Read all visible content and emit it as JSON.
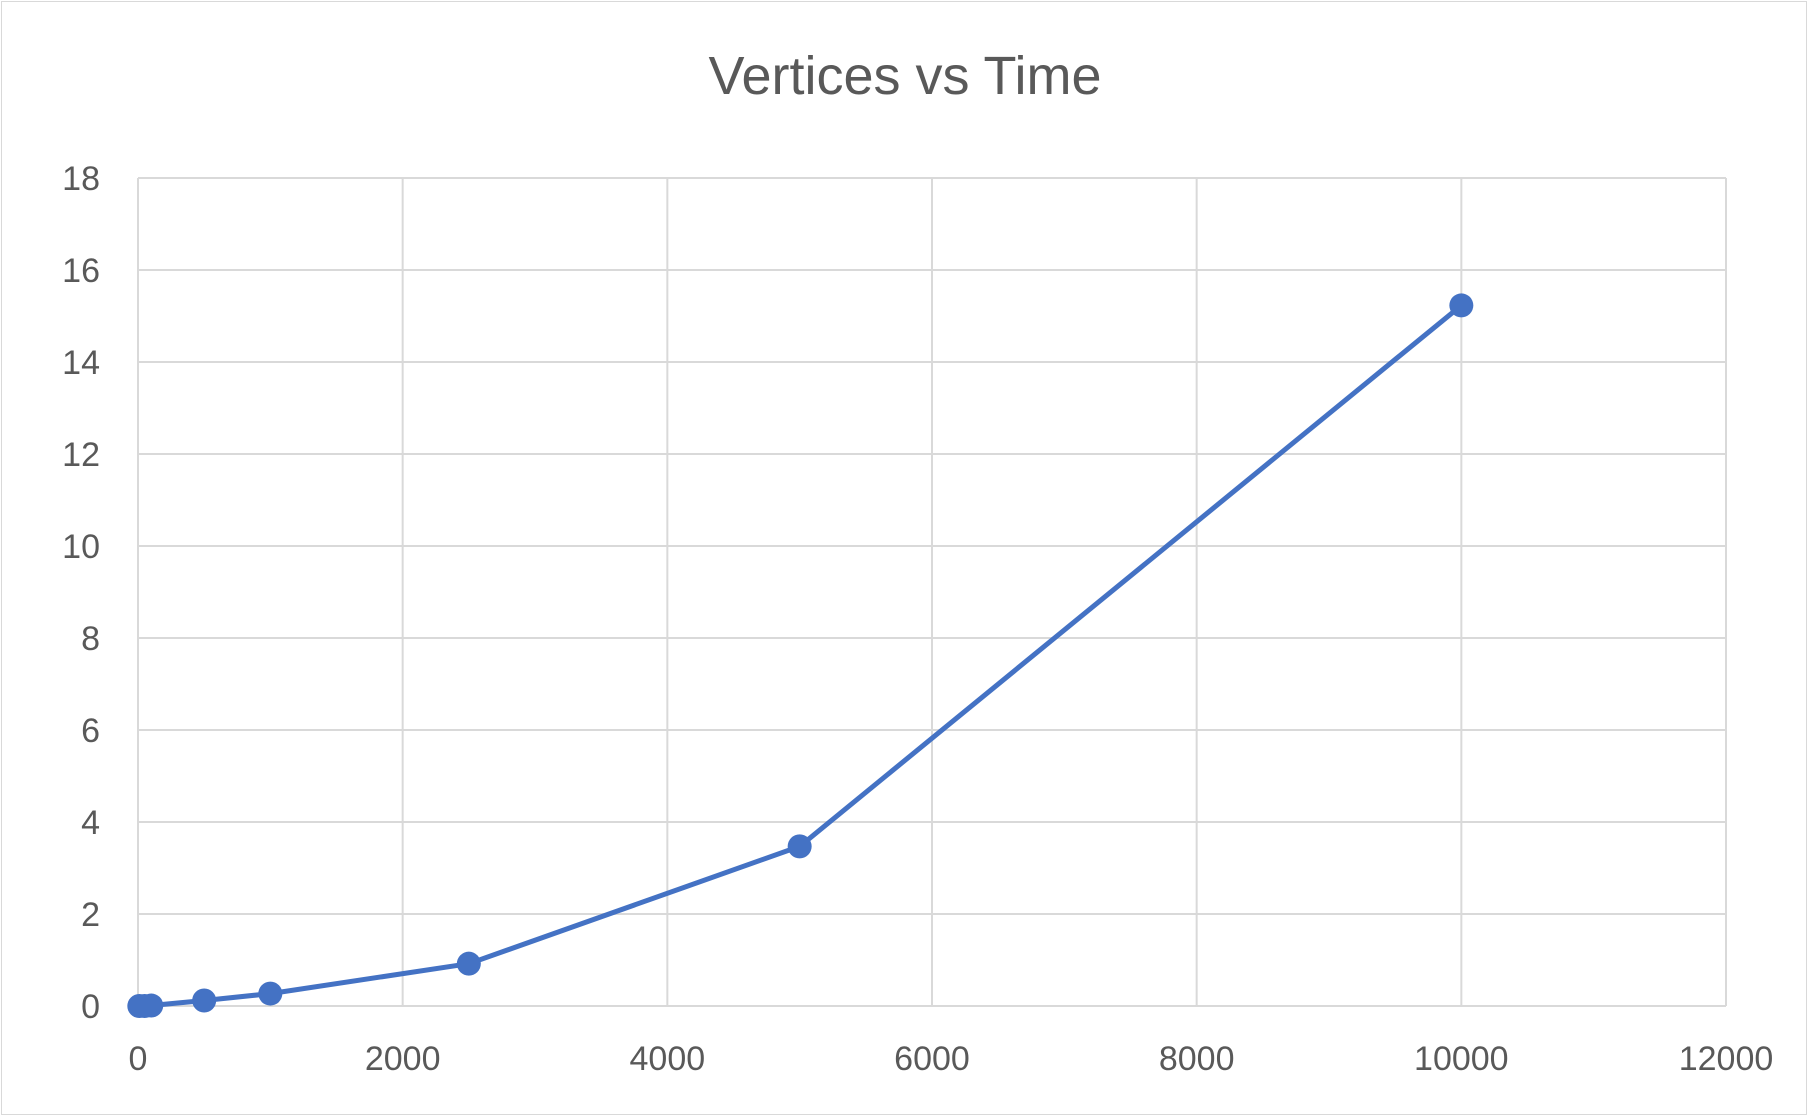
{
  "chart_data": {
    "type": "line",
    "title": "Vertices vs Time",
    "xlabel": "",
    "ylabel": "",
    "xlim": [
      0,
      12000
    ],
    "ylim": [
      0,
      18
    ],
    "x_ticks": [
      0,
      2000,
      4000,
      6000,
      8000,
      10000,
      12000
    ],
    "y_ticks": [
      0,
      2,
      4,
      6,
      8,
      10,
      12,
      14,
      16,
      18
    ],
    "grid": true,
    "legend": "none",
    "series": [
      {
        "color": "#4472c4",
        "points": [
          {
            "x": 10,
            "y": 0.0
          },
          {
            "x": 50,
            "y": 0.0
          },
          {
            "x": 100,
            "y": 0.01
          },
          {
            "x": 500,
            "y": 0.12
          },
          {
            "x": 1000,
            "y": 0.27
          },
          {
            "x": 2500,
            "y": 0.92
          },
          {
            "x": 5000,
            "y": 3.47
          },
          {
            "x": 10000,
            "y": 15.23
          }
        ]
      }
    ]
  }
}
